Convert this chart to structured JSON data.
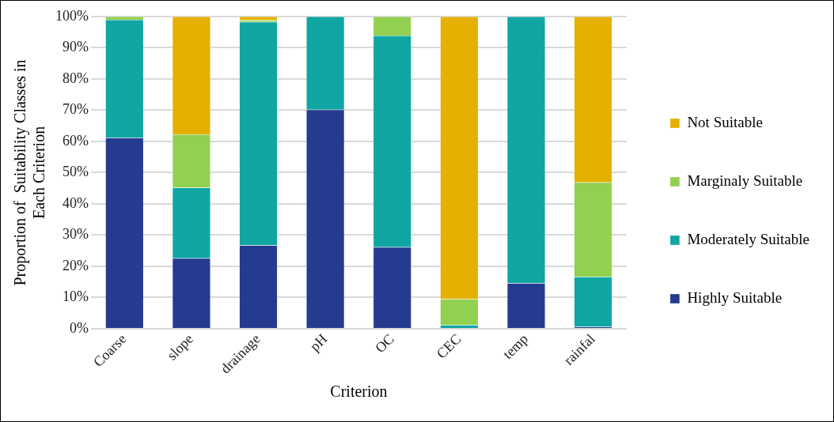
{
  "chart_data": {
    "type": "bar",
    "stacked": true,
    "xlabel": "Criterion",
    "ylabel": "Proportion of  Suitability Classes in Each Criterion",
    "categories": [
      "Coarse",
      "slope",
      "drainage",
      "pH",
      "OC",
      "CEC",
      "temp",
      "rainfal"
    ],
    "series": [
      {
        "name": "Highly Suitable",
        "color": "#253b8f",
        "values": [
          61.2,
          22.6,
          26.7,
          70.2,
          26.1,
          0,
          14.6,
          0.6
        ]
      },
      {
        "name": "Moderately Suitable",
        "color": "#0fa6a4",
        "values": [
          37.8,
          22.6,
          71.6,
          29.8,
          67.8,
          1.2,
          85.4,
          16.0
        ]
      },
      {
        "name": "Marginaly Suitable",
        "color": "#92d050",
        "values": [
          1.0,
          17.1,
          0.6,
          0,
          6.1,
          8.3,
          0,
          30.3
        ]
      },
      {
        "name": "Not Suitable",
        "color": "#e5b000",
        "values": [
          0,
          37.7,
          1.1,
          0,
          0,
          90.5,
          0,
          53.1
        ]
      }
    ],
    "ylim": [
      0,
      100
    ],
    "yticks": [
      {
        "value": 0,
        "label": "0%"
      },
      {
        "value": 10,
        "label": "10%"
      },
      {
        "value": 20,
        "label": "20%"
      },
      {
        "value": 30,
        "label": "30%"
      },
      {
        "value": 40,
        "label": "40%"
      },
      {
        "value": 50,
        "label": "50%"
      },
      {
        "value": 60,
        "label": "60%"
      },
      {
        "value": 70,
        "label": "70%"
      },
      {
        "value": 80,
        "label": "80%"
      },
      {
        "value": 90,
        "label": "90%"
      },
      {
        "value": 100,
        "label": "100%"
      }
    ],
    "grid": "y",
    "legend": "right"
  }
}
